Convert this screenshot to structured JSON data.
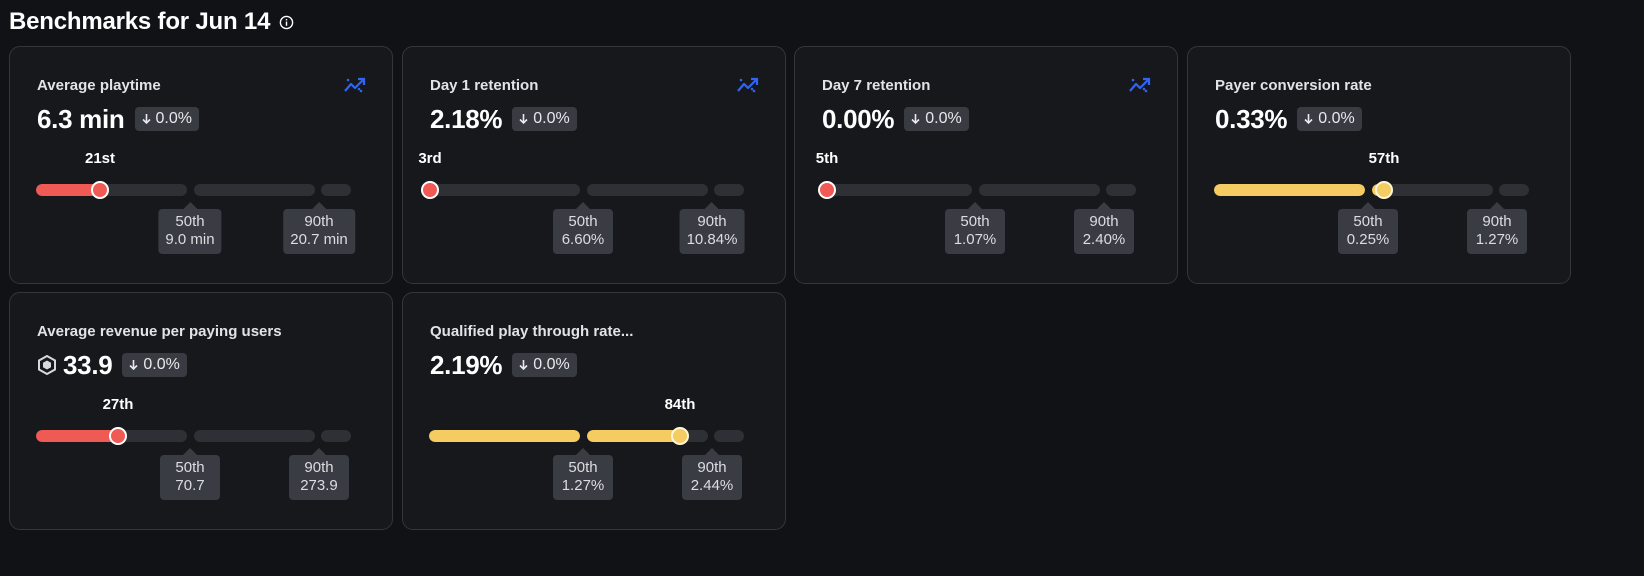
{
  "page": {
    "title": "Benchmarks for Jun 14"
  },
  "colors": {
    "background": "#111216",
    "card": "#17181c",
    "below_benchmark": "#ef5a55",
    "near_benchmark": "#f4cc62",
    "trend_icon": "#2f64f5"
  },
  "cards": [
    {
      "title": "Average playtime",
      "value": "6.3 min",
      "delta": "0.0%",
      "rank": "21st",
      "rank_percentile": 21,
      "p50_label": "50th",
      "p50_value": "9.0 min",
      "p90_label": "90th",
      "p90_value": "20.7 min",
      "status": "red",
      "trend_icon": "trend-chart-icon"
    },
    {
      "title": "Day 1 retention",
      "value": "2.18%",
      "delta": "0.0%",
      "rank": "3rd",
      "rank_percentile": 3,
      "p50_label": "50th",
      "p50_value": "6.60%",
      "p90_label": "90th",
      "p90_value": "10.84%",
      "status": "red",
      "trend_icon": "trend-chart-icon"
    },
    {
      "title": "Day 7 retention",
      "value": "0.00%",
      "delta": "0.0%",
      "rank": "5th",
      "rank_percentile": 5,
      "p50_label": "50th",
      "p50_value": "1.07%",
      "p90_label": "90th",
      "p90_value": "2.40%",
      "status": "red",
      "trend_icon": "trend-chart-icon"
    },
    {
      "title": "Payer conversion rate",
      "value": "0.33%",
      "delta": "0.0%",
      "rank": "57th",
      "rank_percentile": 57,
      "p50_label": "50th",
      "p50_value": "0.25%",
      "p90_label": "90th",
      "p90_value": "1.27%",
      "status": "yellow",
      "trend_icon": ""
    },
    {
      "title": "Average revenue per paying users",
      "value": "33.9",
      "value_icon": "robux-icon",
      "delta": "0.0%",
      "rank": "27th",
      "rank_percentile": 27,
      "p50_label": "50th",
      "p50_value": "70.7",
      "p90_label": "90th",
      "p90_value": "273.9",
      "status": "red",
      "trend_icon": ""
    },
    {
      "title": "Qualified play through rate...",
      "value": "2.19%",
      "delta": "0.0%",
      "rank": "84th",
      "rank_percentile": 84,
      "p50_label": "50th",
      "p50_value": "1.27%",
      "p90_label": "90th",
      "p90_value": "2.44%",
      "status": "yellow",
      "trend_icon": ""
    }
  ]
}
